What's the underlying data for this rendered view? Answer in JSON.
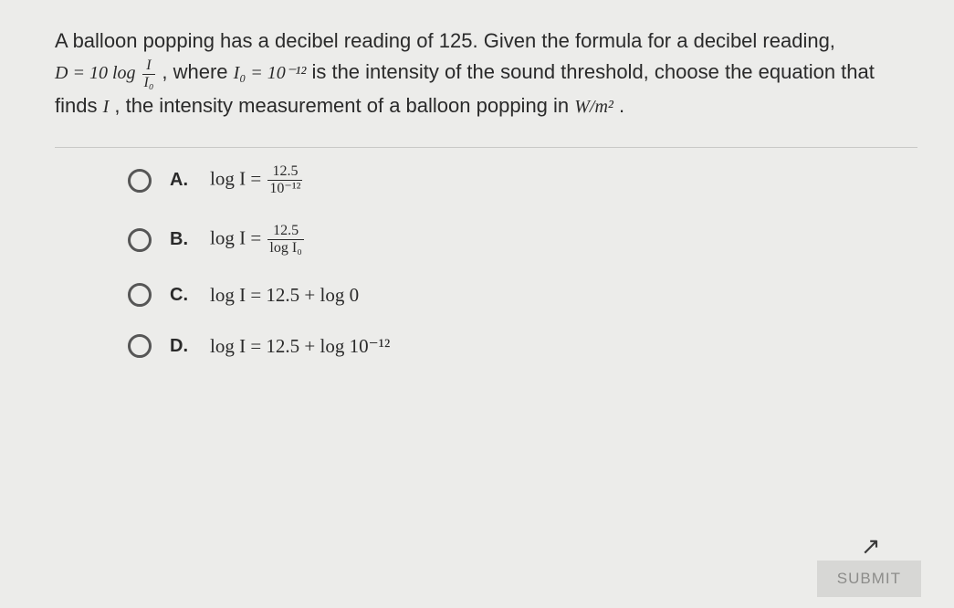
{
  "colors": {
    "background": "#ececea",
    "text": "#2a2a2a",
    "radio_border": "#565656",
    "divider": "#c9c9c7",
    "submit_bg": "#d7d7d5",
    "submit_text": "#8c8c8a"
  },
  "question": {
    "seg1": "A balloon popping has a decibel reading of 125. Given the formula for a decibel reading, ",
    "formula1_lhs": "D = 10 log",
    "formula1_num": "I",
    "formula1_den": "I₀",
    "seg2": ", where ",
    "formula2": "I₀ = 10⁻¹²",
    "seg3": " is the intensity of the sound threshold, choose the equation that finds ",
    "var_I": "I",
    "seg4": ", the intensity measurement of a balloon popping in ",
    "unit": "W/m²",
    "seg5": "."
  },
  "answers": [
    {
      "letter": "A.",
      "lhs": "log I =",
      "frac_num": "12.5",
      "frac_den": "10⁻¹²",
      "rhs": ""
    },
    {
      "letter": "B.",
      "lhs": "log I =",
      "frac_num": "12.5",
      "frac_den": "log I₀",
      "rhs": ""
    },
    {
      "letter": "C.",
      "lhs": "log I = 12.5 + log 0",
      "frac_num": "",
      "frac_den": "",
      "rhs": ""
    },
    {
      "letter": "D.",
      "lhs": "log I = 12.5 + log 10⁻¹²",
      "frac_num": "",
      "frac_den": "",
      "rhs": ""
    }
  ],
  "submit_label": "SUBMIT",
  "cursor_glyph": "↖"
}
